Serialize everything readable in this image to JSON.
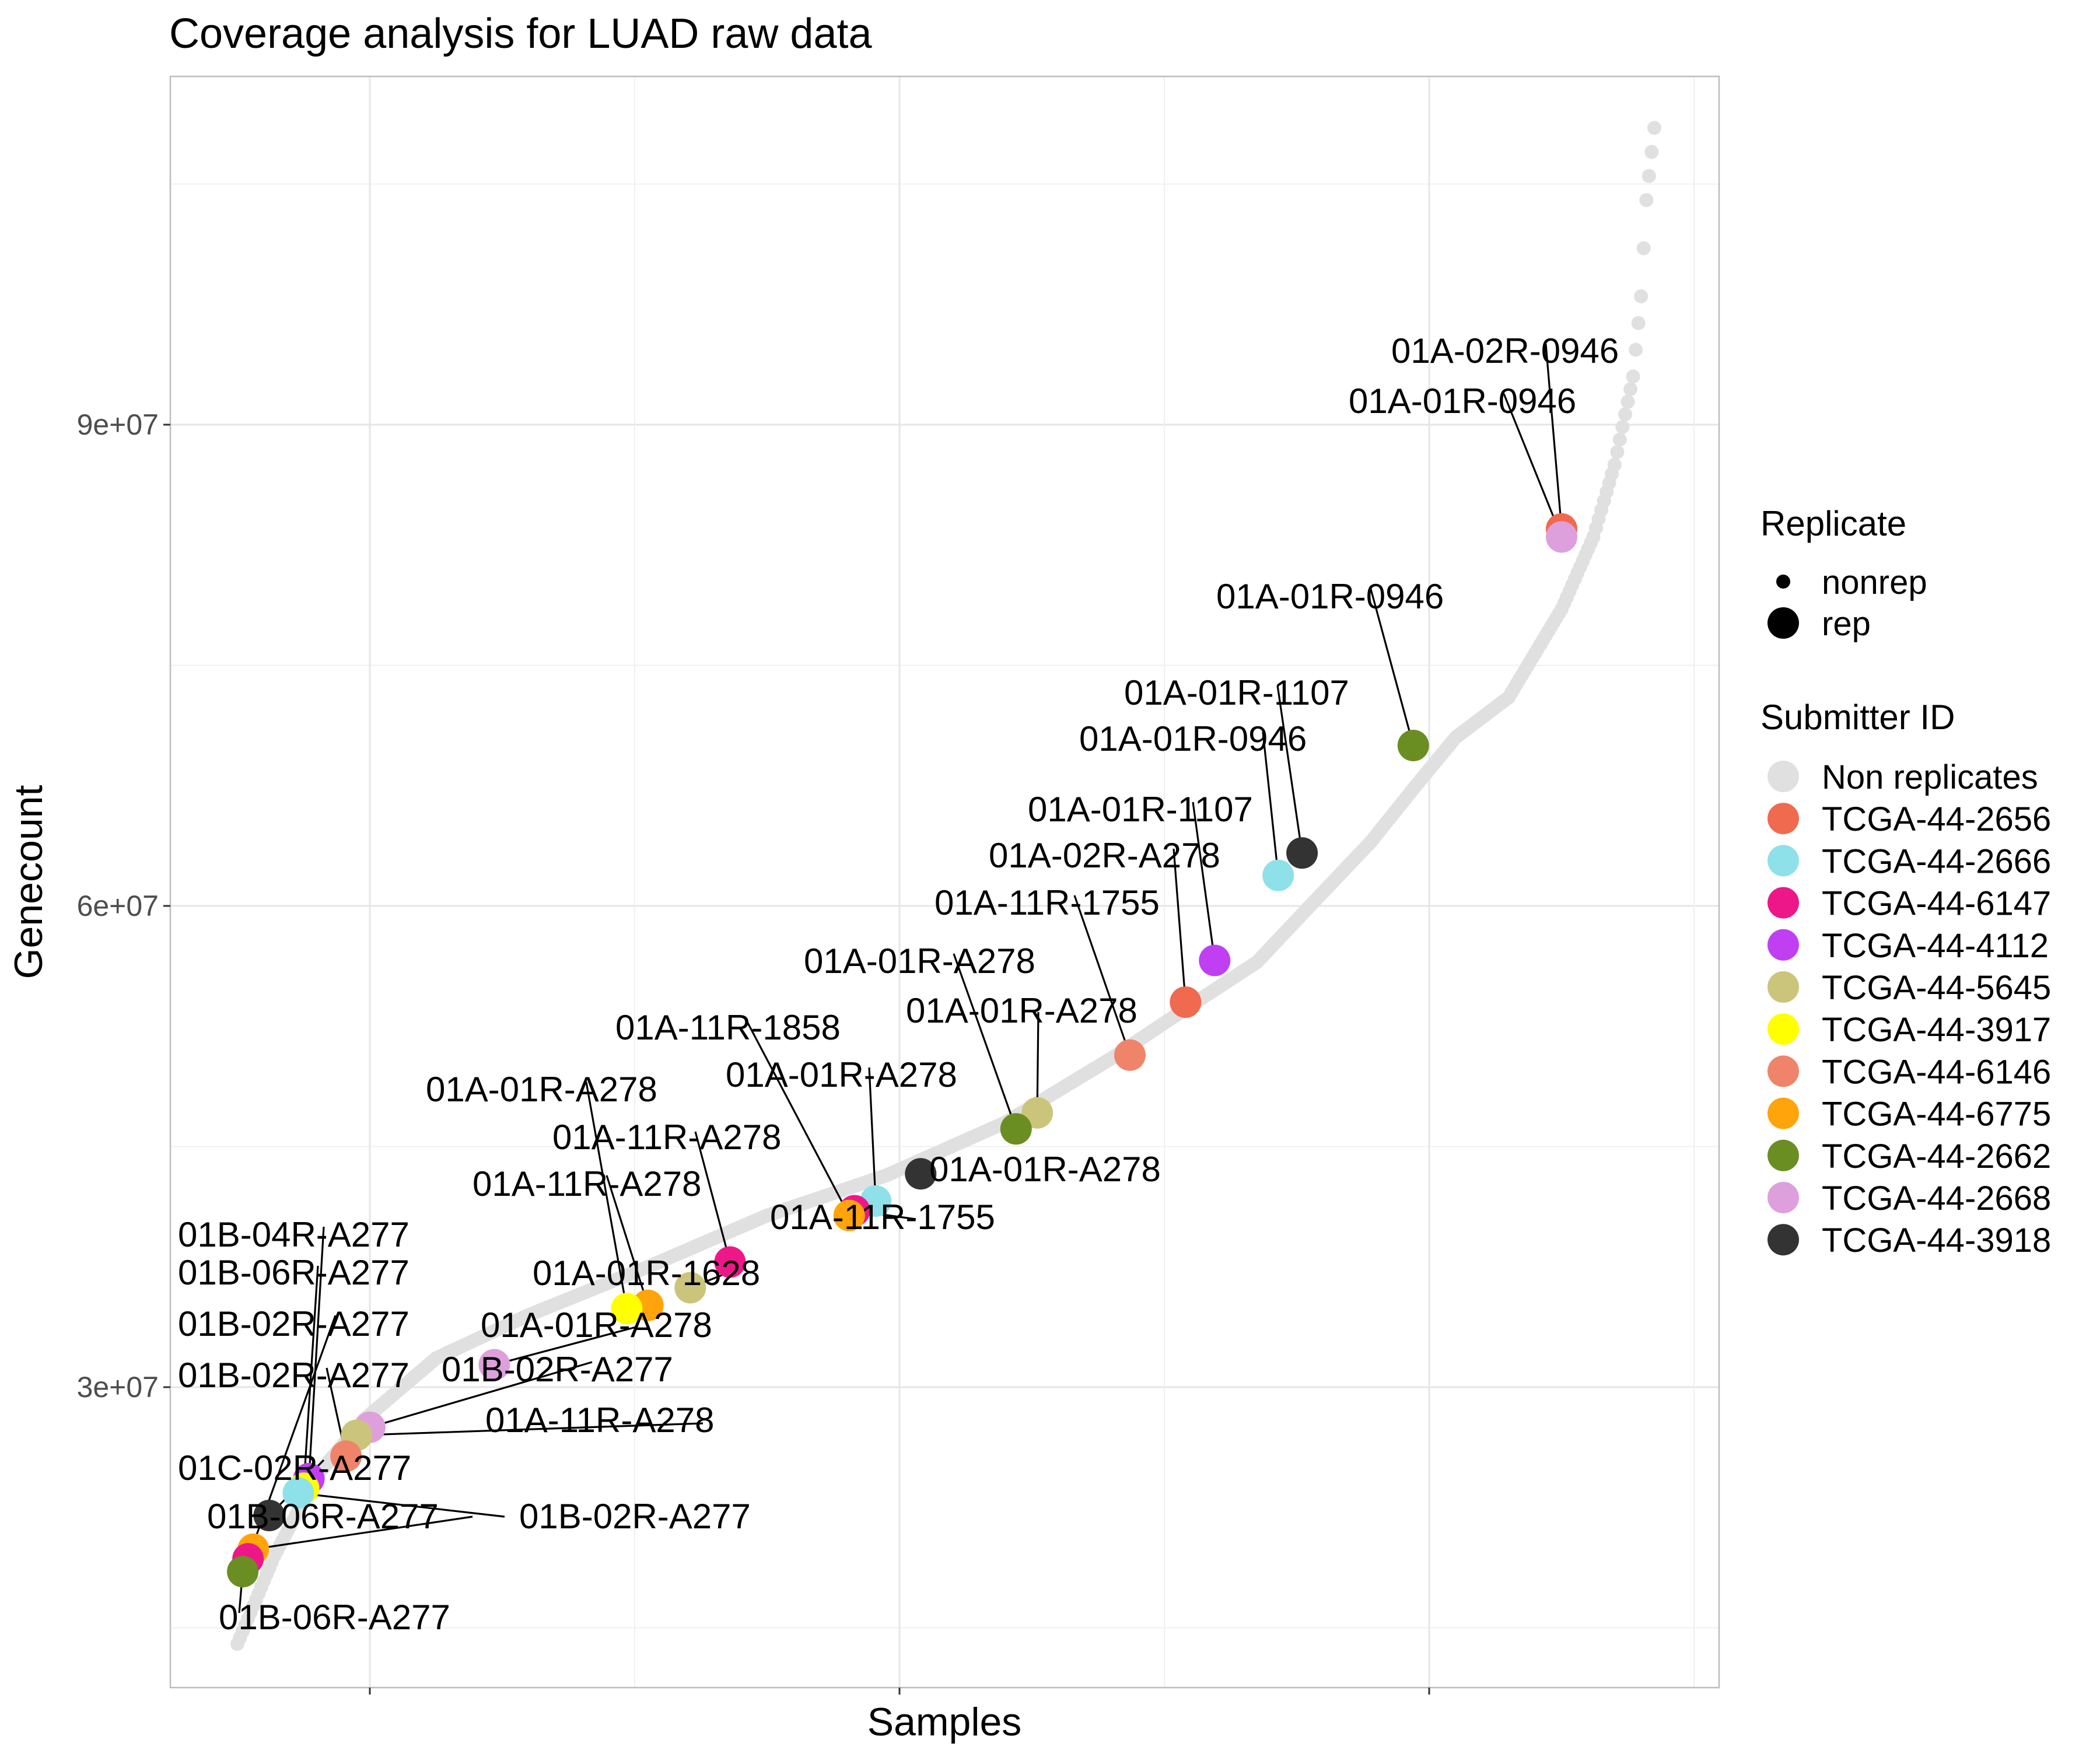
{
  "chart_data": {
    "type": "scatter",
    "title": "Coverage analysis for LUAD raw data",
    "xlabel": "Samples",
    "ylabel": "Genecount",
    "ylim": [
      8000000,
      112000000
    ],
    "y_ticks": [
      30000000,
      60000000,
      90000000
    ],
    "y_tick_labels": [
      "3e+07",
      "6e+07",
      "9e+07"
    ],
    "x_ticks": [
      50,
      150,
      250,
      350,
      450,
      550
    ],
    "xlim": [
      0,
      535
    ],
    "x_tick_labels_shown": false,
    "grid": true,
    "legend_position": "right",
    "background_points": {
      "name": "Non replicates",
      "color": "#e0e0e0",
      "size": "nonrep",
      "curve": [
        [
          0,
          14000000
        ],
        [
          14,
          19500000
        ],
        [
          30,
          24500000
        ],
        [
          48,
          28000000
        ],
        [
          75,
          31800000
        ],
        [
          110,
          34500000
        ],
        [
          155,
          37500000
        ],
        [
          200,
          40700000
        ],
        [
          245,
          43200000
        ],
        [
          290,
          46500000
        ],
        [
          330,
          50500000
        ],
        [
          360,
          53800000
        ],
        [
          385,
          56500000
        ],
        [
          405,
          60000000
        ],
        [
          428,
          64000000
        ],
        [
          445,
          67500000
        ],
        [
          460,
          70500000
        ],
        [
          480,
          73000000
        ],
        [
          500,
          78500000
        ],
        [
          512,
          83000000
        ],
        [
          520,
          87500000
        ],
        [
          527,
          93000000
        ],
        [
          530,
          98000000
        ],
        [
          532,
          104000000
        ],
        [
          535,
          108500000
        ]
      ]
    },
    "replicate_legend": {
      "title": "Replicate",
      "items": [
        {
          "label": "nonrep",
          "size": "small"
        },
        {
          "label": "rep",
          "size": "large"
        }
      ]
    },
    "submitter_legend": {
      "title": "Submitter ID",
      "items": [
        {
          "label": "Non replicates",
          "color": "#e0e0e0"
        },
        {
          "label": "TCGA-44-2656",
          "color": "#f06a4f"
        },
        {
          "label": "TCGA-44-2666",
          "color": "#8ee1e8"
        },
        {
          "label": "TCGA-44-6147",
          "color": "#ee1789"
        },
        {
          "label": "TCGA-44-4112",
          "color": "#c13ff3"
        },
        {
          "label": "TCGA-44-5645",
          "color": "#cac57b"
        },
        {
          "label": "TCGA-44-3917",
          "color": "#ffff00"
        },
        {
          "label": "TCGA-44-6146",
          "color": "#f0846a"
        },
        {
          "label": "TCGA-44-6775",
          "color": "#ffa40a"
        },
        {
          "label": "TCGA-44-2662",
          "color": "#6b8e23"
        },
        {
          "label": "TCGA-44-2668",
          "color": "#dda0dd"
        },
        {
          "label": "TCGA-44-3918",
          "color": "#333333"
        }
      ]
    },
    "replicates": [
      {
        "x": 500,
        "y": 83500000,
        "group": "TCGA-44-2656",
        "label": "01A-02R-0946"
      },
      {
        "x": 500,
        "y": 83000000,
        "group": "TCGA-44-2668",
        "label": "01A-01R-0946"
      },
      {
        "x": 444,
        "y": 70000000,
        "group": "TCGA-44-2662",
        "label": "01A-01R-0946"
      },
      {
        "x": 402,
        "y": 63300000,
        "group": "TCGA-44-3918",
        "label": "01A-01R-1107"
      },
      {
        "x": 393,
        "y": 61900000,
        "group": "TCGA-44-2666",
        "label": "01A-01R-0946"
      },
      {
        "x": 369,
        "y": 56600000,
        "group": "TCGA-44-4112",
        "label": "01A-01R-1107"
      },
      {
        "x": 358,
        "y": 54000000,
        "group": "TCGA-44-2656",
        "label": "01A-02R-A278"
      },
      {
        "x": 337,
        "y": 50700000,
        "group": "TCGA-44-6146",
        "label": "01A-11R-1755"
      },
      {
        "x": 302,
        "y": 47100000,
        "group": "TCGA-44-5645",
        "label": "01A-01R-A278"
      },
      {
        "x": 294,
        "y": 46100000,
        "group": "TCGA-44-2662",
        "label": "01A-01R-A278"
      },
      {
        "x": 258,
        "y": 43300000,
        "group": "TCGA-44-3918",
        "label": "01A-01R-A278"
      },
      {
        "x": 241,
        "y": 41600000,
        "group": "TCGA-44-2666",
        "label": "01A-01R-A278"
      },
      {
        "x": 233,
        "y": 41000000,
        "group": "TCGA-44-6147",
        "label": "01A-11R-1755"
      },
      {
        "x": 231,
        "y": 40700000,
        "group": "TCGA-44-6775",
        "label": "01A-11R-1858"
      },
      {
        "x": 186,
        "y": 37800000,
        "group": "TCGA-44-6147",
        "label": "01A-11R-A278"
      },
      {
        "x": 171,
        "y": 36200000,
        "group": "TCGA-44-5645",
        "label": "01A-01R-1628"
      },
      {
        "x": 155,
        "y": 35100000,
        "group": "TCGA-44-6775",
        "label": "01A-11R-A278"
      },
      {
        "x": 147,
        "y": 34900000,
        "group": "TCGA-44-3917",
        "label": "01A-01R-A278"
      },
      {
        "x": 97,
        "y": 31400000,
        "group": "TCGA-44-2668",
        "label": "01A-01R-A278"
      },
      {
        "x": 50,
        "y": 27500000,
        "group": "TCGA-44-2668",
        "label": "01B-02R-A277"
      },
      {
        "x": 45,
        "y": 27000000,
        "group": "TCGA-44-5645",
        "label": "01A-11R-A278"
      },
      {
        "x": 41,
        "y": 25700000,
        "group": "TCGA-44-6146",
        "label": "01B-02R-A277"
      },
      {
        "x": 27,
        "y": 24300000,
        "group": "TCGA-44-4112",
        "label": "01B-04R-A277"
      },
      {
        "x": 25,
        "y": 23700000,
        "group": "TCGA-44-3917",
        "label": "01B-06R-A277"
      },
      {
        "x": 23,
        "y": 23400000,
        "group": "TCGA-44-2666",
        "label": "01B-02R-A277"
      },
      {
        "x": 12,
        "y": 22000000,
        "group": "TCGA-44-3918",
        "label": "01C-02R-A277"
      },
      {
        "x": 6,
        "y": 19900000,
        "group": "TCGA-44-6775",
        "label": "01B-06R-A277"
      },
      {
        "x": 4,
        "y": 19300000,
        "group": "TCGA-44-6147",
        "label": "01B-02R-A277"
      },
      {
        "x": 2,
        "y": 18500000,
        "group": "TCGA-44-2662",
        "label": "01B-06R-A277"
      }
    ]
  }
}
